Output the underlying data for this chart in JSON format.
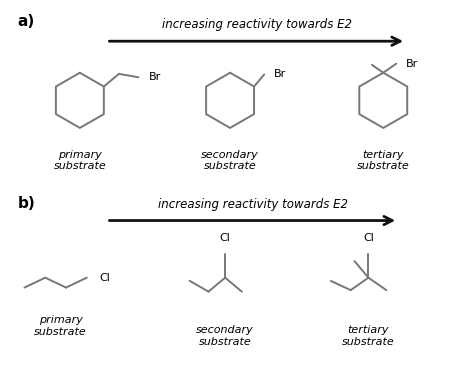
{
  "background_color": "#ffffff",
  "line_color": "#777777",
  "text_color": "#000000",
  "arrow_color": "#111111",
  "label_a": "a)",
  "label_b": "b)",
  "arrow_text": "increasing reactivity towards E2",
  "primary_label": "primary\nsubstrate",
  "secondary_label": "secondary\nsubstrate",
  "tertiary_label": "tertiary\nsubstrate",
  "halogen_Br": "Br",
  "halogen_Cl": "Cl",
  "lw": 1.4,
  "hex_r": 28
}
